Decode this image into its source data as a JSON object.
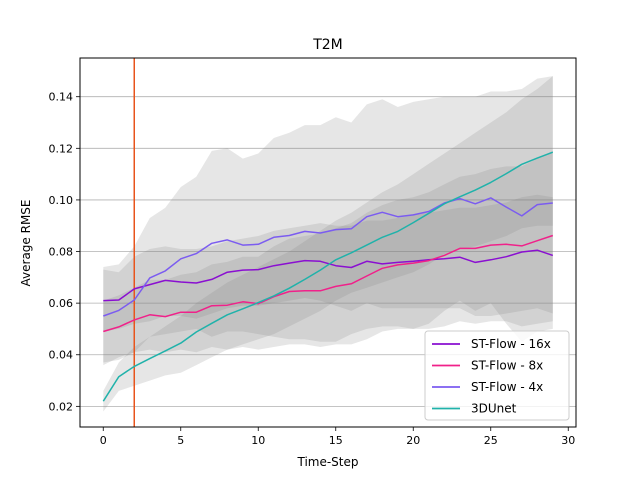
{
  "chart_data": {
    "type": "line",
    "title": "T2M",
    "xlabel": "Time-Step",
    "ylabel": "Average RMSE",
    "xlim": [
      -1.5,
      30.5
    ],
    "ylim": [
      0.012,
      0.155
    ],
    "x_ticks": [
      0,
      5,
      10,
      15,
      20,
      25,
      30
    ],
    "y_ticks": [
      0.02,
      0.04,
      0.06,
      0.08,
      0.1,
      0.12,
      0.14
    ],
    "y_tick_labels": [
      "0.02",
      "0.04",
      "0.06",
      "0.08",
      "0.10",
      "0.12",
      "0.14"
    ],
    "grid": "horizontal",
    "legend_position": "lower-right",
    "vertical_line": {
      "x": 2,
      "color": "#e8541c"
    },
    "x": [
      0,
      1,
      2,
      3,
      4,
      5,
      6,
      7,
      8,
      9,
      10,
      11,
      12,
      13,
      14,
      15,
      16,
      17,
      18,
      19,
      20,
      21,
      22,
      23,
      24,
      25,
      26,
      27,
      28,
      29
    ],
    "series": [
      {
        "name": "ST-Flow - 16x",
        "color": "#8a0fd1",
        "values": [
          0.061,
          0.0612,
          0.0655,
          0.0672,
          0.0688,
          0.0682,
          0.0678,
          0.0692,
          0.072,
          0.0728,
          0.073,
          0.0745,
          0.0755,
          0.0765,
          0.0762,
          0.0745,
          0.0738,
          0.0762,
          0.0752,
          0.0758,
          0.0762,
          0.0768,
          0.0772,
          0.0778,
          0.0758,
          0.0768,
          0.078,
          0.0798,
          0.0805,
          0.0785
        ],
        "band_upper": [
          0.073,
          0.072,
          0.078,
          0.081,
          0.082,
          0.081,
          0.081,
          0.082,
          0.084,
          0.085,
          0.086,
          0.088,
          0.089,
          0.09,
          0.091,
          0.09,
          0.09,
          0.092,
          0.092,
          0.093,
          0.094,
          0.095,
          0.096,
          0.097,
          0.097,
          0.098,
          0.099,
          0.101,
          0.102,
          0.101
        ],
        "band_lower": [
          0.049,
          0.05,
          0.052,
          0.053,
          0.055,
          0.055,
          0.054,
          0.056,
          0.058,
          0.059,
          0.059,
          0.06,
          0.061,
          0.062,
          0.061,
          0.059,
          0.057,
          0.06,
          0.058,
          0.058,
          0.058,
          0.058,
          0.058,
          0.058,
          0.055,
          0.055,
          0.056,
          0.057,
          0.058,
          0.056
        ]
      },
      {
        "name": "ST-Flow - 8x",
        "color": "#f0218a",
        "values": [
          0.049,
          0.0508,
          0.0535,
          0.0555,
          0.0548,
          0.0565,
          0.0565,
          0.059,
          0.0592,
          0.0605,
          0.0598,
          0.0625,
          0.0645,
          0.0648,
          0.0648,
          0.0665,
          0.0675,
          0.0705,
          0.0735,
          0.0748,
          0.0755,
          0.0765,
          0.0785,
          0.0812,
          0.0812,
          0.0825,
          0.0828,
          0.0822,
          0.0842,
          0.0862
        ],
        "band_upper": [
          0.061,
          0.063,
          0.066,
          0.069,
          0.069,
          0.071,
          0.072,
          0.075,
          0.076,
          0.078,
          0.078,
          0.082,
          0.085,
          0.086,
          0.087,
          0.089,
          0.091,
          0.095,
          0.098,
          0.1,
          0.101,
          0.103,
          0.106,
          0.109,
          0.11,
          0.112,
          0.113,
          0.113,
          0.116,
          0.119
        ],
        "band_lower": [
          0.037,
          0.038,
          0.041,
          0.042,
          0.041,
          0.042,
          0.041,
          0.043,
          0.042,
          0.043,
          0.042,
          0.043,
          0.044,
          0.044,
          0.043,
          0.044,
          0.044,
          0.046,
          0.049,
          0.05,
          0.05,
          0.05,
          0.051,
          0.053,
          0.052,
          0.053,
          0.053,
          0.051,
          0.052,
          0.053
        ]
      },
      {
        "name": "ST-Flow - 4x",
        "color": "#7b5cf0",
        "values": [
          0.055,
          0.0572,
          0.0612,
          0.0698,
          0.0725,
          0.0772,
          0.0792,
          0.0832,
          0.0845,
          0.0825,
          0.0828,
          0.0855,
          0.0862,
          0.0878,
          0.0872,
          0.0885,
          0.0888,
          0.0935,
          0.0952,
          0.0935,
          0.0942,
          0.0955,
          0.0988,
          0.1005,
          0.0985,
          0.1008,
          0.0972,
          0.0938,
          0.0982,
          0.0988
        ],
        "band_upper": [
          0.074,
          0.075,
          0.082,
          0.093,
          0.097,
          0.105,
          0.109,
          0.119,
          0.12,
          0.116,
          0.118,
          0.124,
          0.126,
          0.129,
          0.129,
          0.132,
          0.13,
          0.137,
          0.139,
          0.136,
          0.138,
          0.139,
          0.14,
          0.14,
          0.14,
          0.142,
          0.142,
          0.143,
          0.147,
          0.148
        ],
        "band_lower": [
          0.036,
          0.039,
          0.041,
          0.047,
          0.048,
          0.049,
          0.05,
          0.047,
          0.049,
          0.049,
          0.048,
          0.047,
          0.046,
          0.046,
          0.045,
          0.045,
          0.048,
          0.05,
          0.051,
          0.051,
          0.05,
          0.052,
          0.057,
          0.061,
          0.057,
          0.06,
          0.052,
          0.045,
          0.049,
          0.05
        ]
      },
      {
        "name": "3DUnet",
        "color": "#20b2aa",
        "values": [
          0.022,
          0.0315,
          0.0355,
          0.0385,
          0.0415,
          0.0445,
          0.0488,
          0.0522,
          0.0555,
          0.0578,
          0.0602,
          0.0628,
          0.0658,
          0.0692,
          0.0728,
          0.0768,
          0.0795,
          0.0825,
          0.0855,
          0.0878,
          0.0912,
          0.0948,
          0.0985,
          0.1012,
          0.1038,
          0.1068,
          0.1102,
          0.1138,
          0.1162,
          0.1185
        ],
        "band_upper": [
          0.026,
          0.037,
          0.043,
          0.047,
          0.051,
          0.055,
          0.06,
          0.064,
          0.068,
          0.071,
          0.074,
          0.077,
          0.08,
          0.084,
          0.088,
          0.092,
          0.095,
          0.099,
          0.103,
          0.106,
          0.11,
          0.114,
          0.118,
          0.122,
          0.126,
          0.13,
          0.134,
          0.139,
          0.143,
          0.148
        ],
        "band_lower": [
          0.018,
          0.026,
          0.028,
          0.03,
          0.032,
          0.033,
          0.036,
          0.039,
          0.042,
          0.044,
          0.046,
          0.048,
          0.051,
          0.054,
          0.057,
          0.061,
          0.064,
          0.066,
          0.068,
          0.07,
          0.072,
          0.075,
          0.079,
          0.081,
          0.082,
          0.084,
          0.086,
          0.089,
          0.09,
          0.09
        ]
      }
    ]
  }
}
